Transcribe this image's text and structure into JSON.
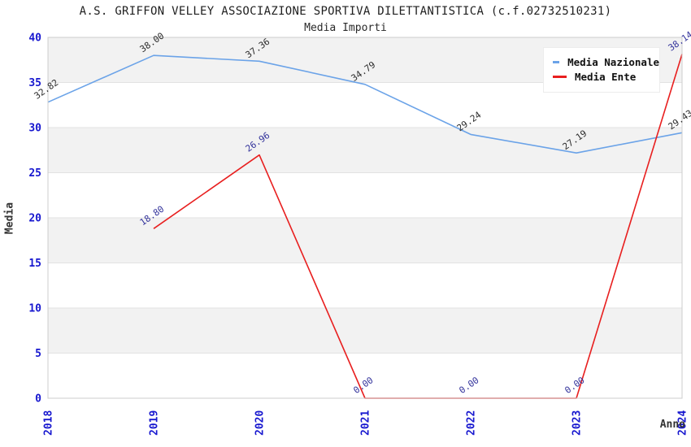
{
  "chart_data": {
    "type": "line",
    "title": "A.S. GRIFFON VELLEY ASSOCIAZIONE SPORTIVA DILETTANTISTICA (c.f.02732510231)",
    "subtitle": "Media Importi",
    "xlabel": "Anno",
    "ylabel": "Media",
    "categories": [
      "2018",
      "2019",
      "2020",
      "2021",
      "2022",
      "2023",
      "2024"
    ],
    "series": [
      {
        "name": "Media Nazionale",
        "color": "#6ba3e8",
        "label_color": "#2b2b2b",
        "values": [
          32.82,
          38.0,
          37.36,
          34.79,
          29.24,
          27.19,
          29.43
        ]
      },
      {
        "name": "Media Ente",
        "color": "#e81f1f",
        "label_color": "#32329b",
        "values": [
          null,
          18.8,
          26.96,
          0.0,
          0.0,
          0.0,
          38.14
        ]
      }
    ],
    "ylim": [
      0,
      40
    ],
    "yticks": [
      0,
      5,
      10,
      15,
      20,
      25,
      30,
      35,
      40
    ],
    "grid": true,
    "legend_position": "top-right",
    "band_colors": [
      "#ffffff",
      "#f2f2f2"
    ],
    "gridline_color": "#e2e2e2",
    "border_color": "#cccccc",
    "axis_tick_color": "#1717cf"
  }
}
